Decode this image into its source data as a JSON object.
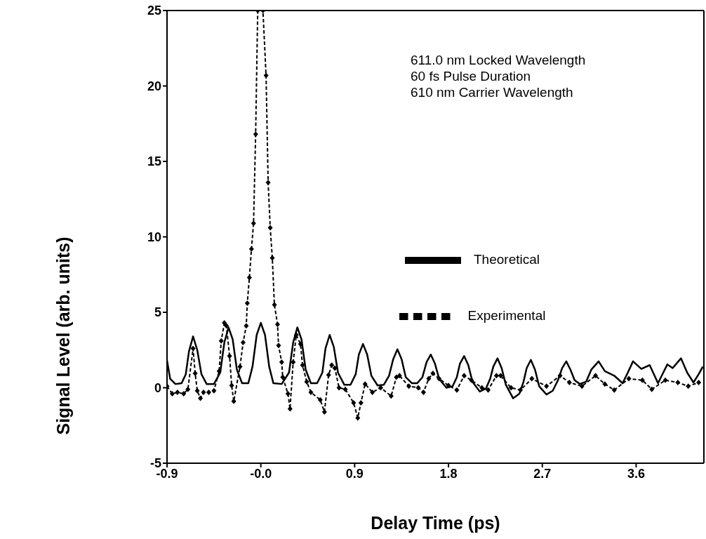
{
  "chart_data": {
    "type": "line",
    "xlabel": "Delay Time (ps)",
    "ylabel": "Signal Level (arb. units)",
    "xlim": [
      -0.9,
      4.25
    ],
    "xticks": [
      -0.9,
      {
        "value": 0,
        "label": "-0.0"
      },
      0.9,
      1.8,
      2.7,
      3.6
    ],
    "ylim": [
      -5,
      25
    ],
    "yticks": [
      -5,
      0,
      5,
      10,
      15,
      20,
      25
    ],
    "legend": "right",
    "annotations": [
      "611.0 nm Locked Wavelength",
      "60 fs Pulse Duration",
      "610 nm Carrier Wavelength"
    ],
    "series": [
      {
        "name": "Theoretical",
        "color": "#000000",
        "line_style": "solid",
        "marker": "none",
        "x": [
          -0.9,
          -0.87,
          -0.82,
          -0.76,
          -0.72,
          -0.69,
          -0.65,
          -0.61,
          -0.57,
          -0.52,
          -0.45,
          -0.39,
          -0.35,
          -0.31,
          -0.27,
          -0.23,
          -0.18,
          -0.12,
          -0.08,
          -0.04,
          0.0,
          0.04,
          0.08,
          0.12,
          0.2,
          0.27,
          0.31,
          0.35,
          0.39,
          0.43,
          0.48,
          0.54,
          0.59,
          0.62,
          0.66,
          0.7,
          0.74,
          0.8,
          0.86,
          0.91,
          0.94,
          0.98,
          1.02,
          1.06,
          1.12,
          1.18,
          1.23,
          1.27,
          1.31,
          1.35,
          1.39,
          1.45,
          1.5,
          1.55,
          1.59,
          1.63,
          1.67,
          1.71,
          1.78,
          1.84,
          1.88,
          1.91,
          1.95,
          1.99,
          2.03,
          2.1,
          2.16,
          2.2,
          2.23,
          2.27,
          2.31,
          2.35,
          2.42,
          2.48,
          2.52,
          2.55,
          2.59,
          2.63,
          2.67,
          2.74,
          2.8,
          2.85,
          2.89,
          2.93,
          2.97,
          3.01,
          3.06,
          3.12,
          3.17,
          3.24,
          3.3,
          3.39,
          3.47,
          3.52,
          3.57,
          3.65,
          3.73,
          3.81,
          3.86,
          3.9,
          3.95,
          4.03,
          4.09,
          4.15,
          4.2,
          4.24
        ],
        "values": [
          1.8,
          0.6,
          0.25,
          0.3,
          0.9,
          2.4,
          3.4,
          2.5,
          0.9,
          0.25,
          0.25,
          1.0,
          3.0,
          4.0,
          3.2,
          1.2,
          0.3,
          0.3,
          1.4,
          3.5,
          4.3,
          3.5,
          1.4,
          0.3,
          0.25,
          1.0,
          3.0,
          4.0,
          3.2,
          1.2,
          0.3,
          0.3,
          1.0,
          2.6,
          3.5,
          2.7,
          1.0,
          0.2,
          0.2,
          0.9,
          2.2,
          2.9,
          2.2,
          0.8,
          0.15,
          0.2,
          0.8,
          1.9,
          2.55,
          1.9,
          0.7,
          0.3,
          0.3,
          0.7,
          1.7,
          2.2,
          1.6,
          0.6,
          0.0,
          0.1,
          0.7,
          1.6,
          2.1,
          1.5,
          0.4,
          -0.25,
          -0.05,
          0.6,
          1.4,
          1.95,
          1.3,
          0.2,
          -0.7,
          -0.4,
          0.4,
          1.3,
          1.85,
          1.2,
          0.1,
          -0.45,
          -0.2,
          0.5,
          1.3,
          1.75,
          1.2,
          0.5,
          0.25,
          0.4,
          1.2,
          1.75,
          1.1,
          0.8,
          0.3,
          1.0,
          1.75,
          1.25,
          1.5,
          0.3,
          1.0,
          1.55,
          1.3,
          1.95,
          1.0,
          0.35,
          0.9,
          1.4
        ]
      },
      {
        "name": "Experimental",
        "color": "#000000",
        "line_style": "dashed",
        "marker": "diamond",
        "x": [
          -0.9,
          -0.85,
          -0.8,
          -0.74,
          -0.7,
          -0.65,
          -0.63,
          -0.61,
          -0.58,
          -0.55,
          -0.5,
          -0.45,
          -0.4,
          -0.38,
          -0.35,
          -0.33,
          -0.3,
          -0.28,
          -0.26,
          -0.2,
          -0.17,
          -0.14,
          -0.13,
          -0.11,
          -0.09,
          -0.07,
          -0.05,
          -0.03,
          0.02,
          0.05,
          0.07,
          0.09,
          0.11,
          0.13,
          0.16,
          0.17,
          0.2,
          0.21,
          0.26,
          0.28,
          0.31,
          0.34,
          0.38,
          0.4,
          0.44,
          0.48,
          0.57,
          0.61,
          0.65,
          0.68,
          0.71,
          0.75,
          0.81,
          0.89,
          0.93,
          0.96,
          1.0,
          1.07,
          1.15,
          1.25,
          1.3,
          1.33,
          1.42,
          1.51,
          1.56,
          1.61,
          1.65,
          1.71,
          1.8,
          1.88,
          1.95,
          2.02,
          2.12,
          2.18,
          2.26,
          2.3,
          2.4,
          2.49,
          2.6,
          2.74,
          2.87,
          2.96,
          3.08,
          3.21,
          3.3,
          3.39,
          3.53,
          3.66,
          3.75,
          3.88,
          4.0,
          4.1,
          4.2
        ],
        "values": [
          0.1,
          -0.4,
          -0.3,
          -0.4,
          -0.1,
          2.6,
          0.95,
          -0.2,
          -0.7,
          -0.3,
          -0.3,
          -0.2,
          1.1,
          3.1,
          4.3,
          4.1,
          2.1,
          0.15,
          -0.9,
          1.4,
          3.0,
          4.1,
          5.6,
          7.3,
          9.2,
          10.9,
          16.8,
          25,
          25,
          20.7,
          13.6,
          10.6,
          8.6,
          5.5,
          4.2,
          2.8,
          1.7,
          0.7,
          -0.4,
          -1.4,
          1.7,
          3.5,
          2.9,
          1.5,
          0.4,
          -0.3,
          -0.8,
          -1.6,
          0.85,
          1.5,
          1.3,
          0.0,
          -0.1,
          -1.0,
          -2.0,
          -1.0,
          0.25,
          -0.3,
          0.0,
          -0.55,
          0.7,
          0.8,
          0.1,
          0.0,
          -0.3,
          0.6,
          0.95,
          0.6,
          0.15,
          -0.15,
          0.8,
          0.5,
          0.0,
          -0.15,
          0.8,
          0.8,
          0.0,
          -0.15,
          0.6,
          0.1,
          0.8,
          0.35,
          0.1,
          0.8,
          0.25,
          -0.15,
          0.6,
          0.5,
          -0.1,
          0.5,
          0.35,
          0.1,
          0.35
        ]
      }
    ]
  }
}
